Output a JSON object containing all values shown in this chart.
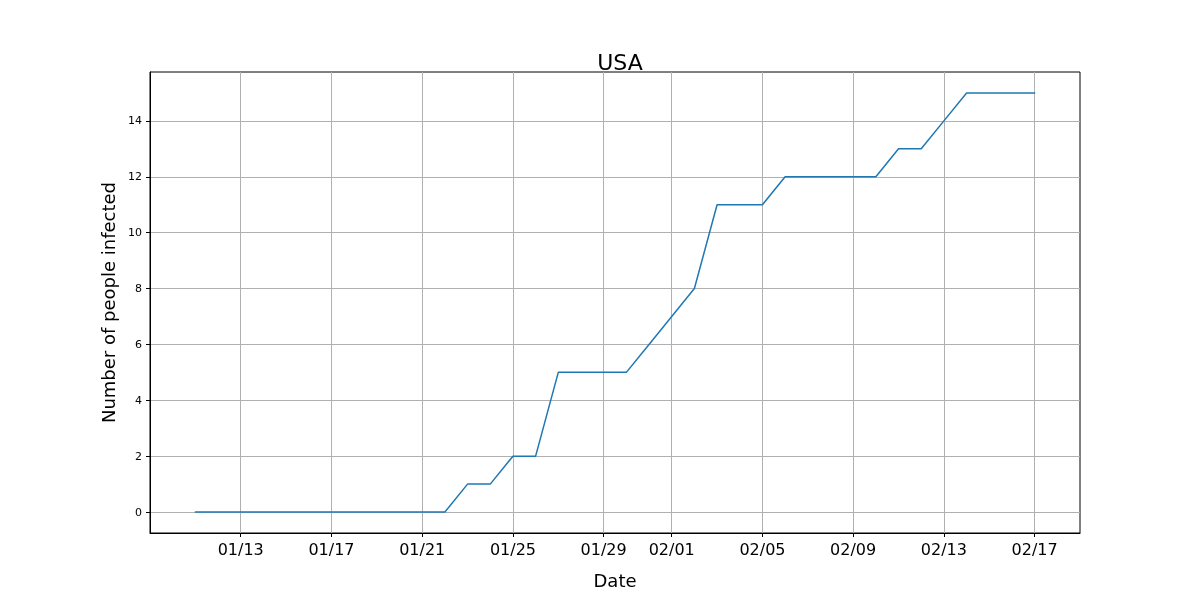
{
  "chart_data": {
    "type": "line",
    "title": "USA",
    "xlabel": "Date",
    "ylabel": "Number of people infected",
    "x": [
      "--01-11",
      "--01-12",
      "--01-13",
      "--01-14",
      "--01-15",
      "--01-16",
      "--01-17",
      "--01-18",
      "--01-19",
      "--01-20",
      "--01-21",
      "--01-22",
      "--01-23",
      "--01-24",
      "--01-25",
      "--01-26",
      "--01-27",
      "--01-28",
      "--01-29",
      "--01-30",
      "--01-31",
      "--02-01",
      "--02-02",
      "--02-03",
      "--02-04",
      "--02-05",
      "--02-06",
      "--02-07",
      "--02-08",
      "--02-09",
      "--02-10",
      "--02-11",
      "--02-12",
      "--02-13",
      "--02-14",
      "--02-15",
      "--02-16",
      "--02-17"
    ],
    "values": [
      0,
      0,
      0,
      0,
      0,
      0,
      0,
      0,
      0,
      0,
      0,
      0,
      1,
      1,
      2,
      2,
      5,
      5,
      5,
      5,
      6,
      7,
      8,
      11,
      11,
      11,
      12,
      12,
      12,
      12,
      12,
      13,
      13,
      14,
      15,
      15,
      15,
      15
    ],
    "color": "#1f77b4",
    "xlim": [
      "--01-09",
      "--02-19"
    ],
    "xticks": [
      {
        "value": "--01-13",
        "label": "01/13"
      },
      {
        "value": "--01-17",
        "label": "01/17"
      },
      {
        "value": "--01-21",
        "label": "01/21"
      },
      {
        "value": "--01-25",
        "label": "01/25"
      },
      {
        "value": "--01-29",
        "label": "01/29"
      },
      {
        "value": "--02-01",
        "label": "02/01"
      },
      {
        "value": "--02-05",
        "label": "02/05"
      },
      {
        "value": "--02-09",
        "label": "02/09"
      },
      {
        "value": "--02-13",
        "label": "02/13"
      },
      {
        "value": "--02-17",
        "label": "02/17"
      }
    ],
    "ylim": [
      -0.75,
      15.75
    ],
    "yticks": [
      0,
      2,
      4,
      6,
      8,
      10,
      12,
      14
    ],
    "grid": true,
    "marker": "none",
    "line_style": "solid"
  }
}
